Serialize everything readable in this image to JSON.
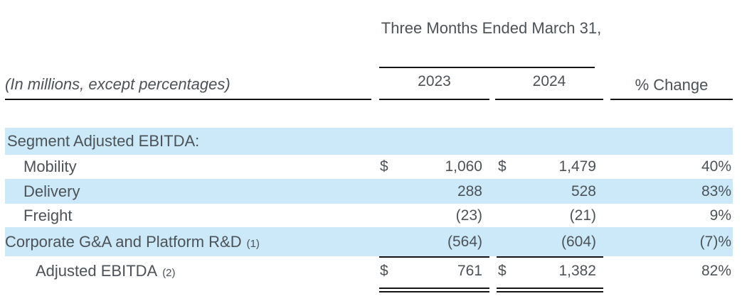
{
  "table": {
    "units_note": "(In millions, except percentages)",
    "period_header": "Three Months Ended March 31,",
    "columns": {
      "y2023": "2023",
      "y2024": "2024",
      "pct_change": "% Change"
    },
    "rows": [
      {
        "label": "Segment Adjusted EBITDA:",
        "note": "",
        "d1": "",
        "v1": "",
        "d2": "",
        "v2": "",
        "pct": ""
      },
      {
        "label": "Mobility",
        "note": "",
        "d1": "$",
        "v1": "1,060",
        "d2": "$",
        "v2": "1,479",
        "pct": "40%"
      },
      {
        "label": "Delivery",
        "note": "",
        "d1": "",
        "v1": "288",
        "d2": "",
        "v2": "528",
        "pct": "83%"
      },
      {
        "label": "Freight",
        "note": "",
        "d1": "",
        "v1": "(23)",
        "d2": "",
        "v2": "(21)",
        "pct": "9%"
      },
      {
        "label": "Corporate G&A and Platform R&D",
        "note": "(1)",
        "d1": "",
        "v1": "(564)",
        "d2": "",
        "v2": "(604)",
        "pct": "(7)%"
      },
      {
        "label": "Adjusted EBITDA",
        "note": "(2)",
        "d1": "$",
        "v1": "761",
        "d2": "$",
        "v2": "1,382",
        "pct": "82%"
      }
    ]
  },
  "colors": {
    "row_highlight": "#cce9f9",
    "text": "#4d5257",
    "rule": "#141414",
    "bg": "#ffffff"
  }
}
